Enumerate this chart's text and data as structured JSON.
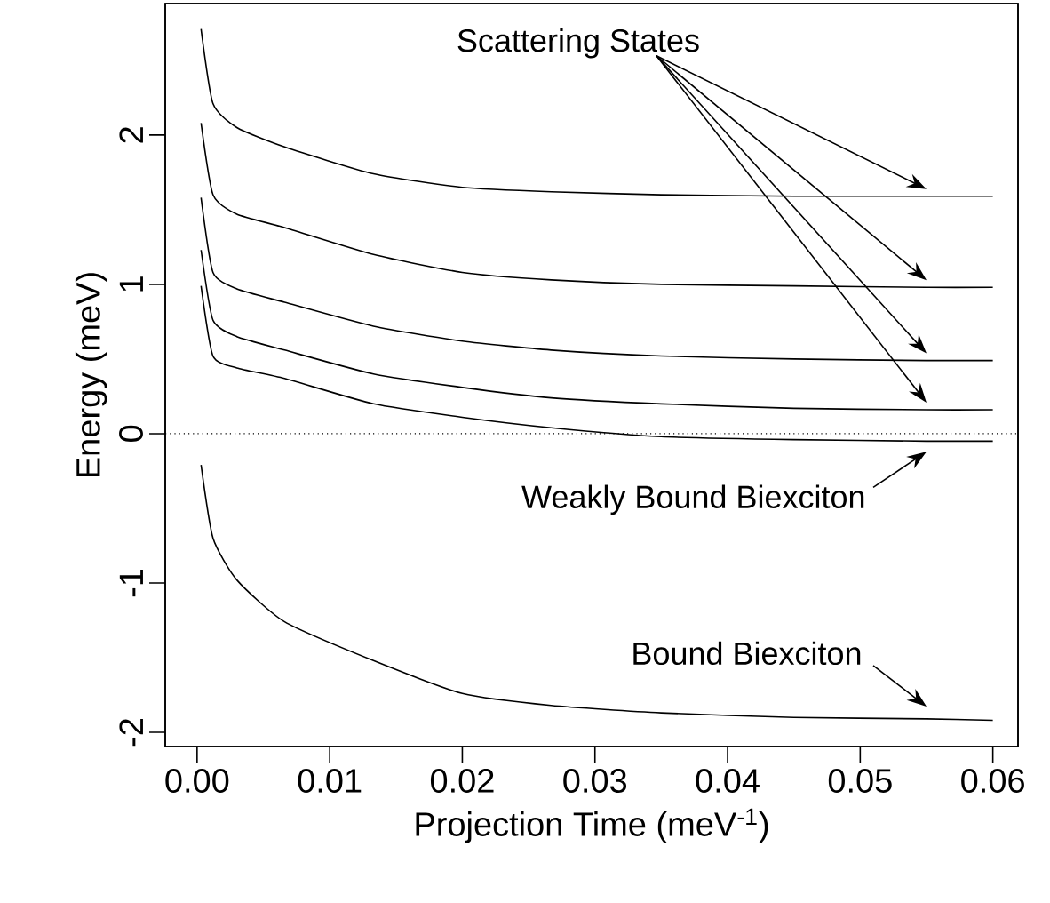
{
  "chart_data": {
    "type": "line",
    "xlabel": "Projection Time (meV$^{-1}$)",
    "ylabel": "Energy (meV)",
    "x": [
      0.0003,
      0.0012,
      0.003,
      0.0066,
      0.0133,
      0.02,
      0.0267,
      0.035,
      0.045,
      0.055,
      0.06
    ],
    "series": [
      {
        "color": "#000000",
        "values": [
          2.71,
          2.21,
          2.05,
          1.92,
          1.74,
          1.65,
          1.62,
          1.6,
          1.59,
          1.59,
          1.59
        ]
      },
      {
        "color": "#000000",
        "values": [
          2.08,
          1.6,
          1.47,
          1.38,
          1.2,
          1.08,
          1.03,
          1.0,
          0.99,
          0.98,
          0.98
        ]
      },
      {
        "color": "#000000",
        "values": [
          1.58,
          1.08,
          0.97,
          0.88,
          0.72,
          0.62,
          0.56,
          0.52,
          0.5,
          0.49,
          0.49
        ]
      },
      {
        "color": "#000000",
        "values": [
          1.23,
          0.76,
          0.65,
          0.56,
          0.4,
          0.31,
          0.24,
          0.2,
          0.17,
          0.16,
          0.16
        ]
      },
      {
        "color": "#000000",
        "values": [
          0.99,
          0.52,
          0.44,
          0.37,
          0.2,
          0.11,
          0.04,
          -0.02,
          -0.04,
          -0.05,
          -0.05
        ]
      },
      {
        "color": "#000000",
        "values": [
          -0.21,
          -0.7,
          -0.98,
          -1.26,
          -1.52,
          -1.74,
          -1.82,
          -1.87,
          -1.9,
          -1.91,
          -1.92
        ]
      }
    ],
    "xlim": [
      -0.0024,
      0.0619
    ],
    "ylim": [
      -2.095,
      2.88
    ],
    "xticks": [
      {
        "value": 0,
        "label": "0.00"
      },
      0.01,
      0.02,
      0.03,
      0.04,
      0.05,
      0.06
    ],
    "yticks": [
      -2,
      -1,
      0,
      1,
      2
    ],
    "ref_lines": [
      {
        "axis": "y",
        "value": 0,
        "line_style": "dotted",
        "color": "#000000"
      }
    ],
    "annotations": [
      "Scattering States",
      "Weakly Bound Biexciton",
      "Bound Biexciton"
    ],
    "grid": false
  }
}
